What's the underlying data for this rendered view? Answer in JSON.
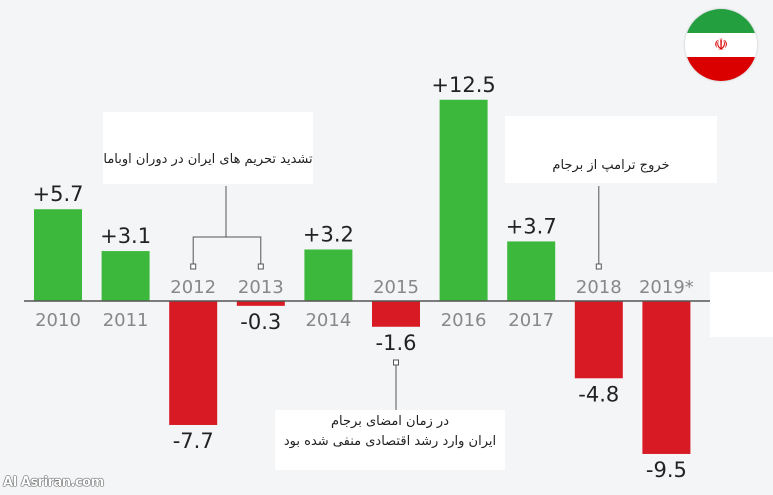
{
  "chart_data": {
    "type": "bar",
    "categories": [
      "2010",
      "2011",
      "2012",
      "2013",
      "2014",
      "2015",
      "2016",
      "2017",
      "2018",
      "2019*"
    ],
    "values": [
      5.7,
      3.1,
      -7.7,
      -0.3,
      3.2,
      -1.6,
      12.5,
      3.7,
      -4.8,
      -9.5
    ],
    "value_labels": [
      "+5.7",
      "+3.1",
      "-7.7",
      "-0.3",
      "+3.2",
      "-1.6",
      "+12.5",
      "+3.7",
      "-4.8",
      "-9.5"
    ],
    "title": "",
    "xlabel": "",
    "ylabel": "",
    "ylim": [
      -10.5,
      13.5
    ],
    "grid": false,
    "colors": {
      "positive": "#3cb93c",
      "negative": "#d71a24",
      "axis": "#555555",
      "year_label": "#888888"
    },
    "annotations": [
      {
        "text": "تشدید تحریم های ایران در دوران اوباما",
        "targets": [
          "2012",
          "2013"
        ]
      },
      {
        "text": "خروج ترامپ از برجام",
        "targets": [
          "2018"
        ]
      },
      {
        "text_lines": [
          "در زمان امضای برجام",
          "ایران وارد رشد اقتصادی منفی شده بود"
        ],
        "targets": [
          "2015"
        ]
      }
    ]
  },
  "flag": {
    "icon": "iran-flag-icon",
    "colors": [
      "#239f40",
      "#ffffff",
      "#da0000"
    ]
  },
  "watermark": "Asriran.com"
}
